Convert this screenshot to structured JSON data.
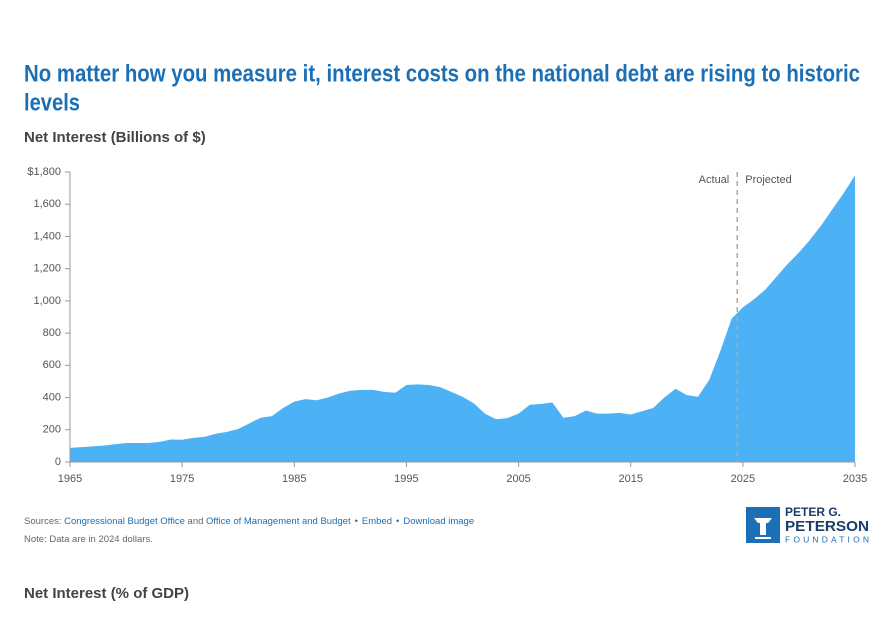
{
  "chart_data": {
    "type": "area",
    "title": "No matter how you measure it, interest costs on the national debt are rising to historic",
    "title_line2": "levels",
    "subtitle": "Net Interest (Billions of $)",
    "color": "#4db1f6",
    "x": [
      1965,
      1966,
      1967,
      1968,
      1969,
      1970,
      1971,
      1972,
      1973,
      1974,
      1975,
      1976,
      1977,
      1978,
      1979,
      1980,
      1981,
      1982,
      1983,
      1984,
      1985,
      1986,
      1987,
      1988,
      1989,
      1990,
      1991,
      1992,
      1993,
      1994,
      1995,
      1996,
      1997,
      1998,
      1999,
      2000,
      2001,
      2002,
      2003,
      2004,
      2005,
      2006,
      2007,
      2008,
      2009,
      2010,
      2011,
      2012,
      2013,
      2014,
      2015,
      2016,
      2017,
      2018,
      2019,
      2020,
      2021,
      2022,
      2023,
      2024,
      2025,
      2026,
      2027,
      2028,
      2029,
      2030,
      2031,
      2032,
      2033,
      2034,
      2035
    ],
    "values": [
      88,
      92,
      97,
      102,
      110,
      118,
      118,
      118,
      125,
      140,
      138,
      150,
      157,
      175,
      187,
      205,
      240,
      275,
      285,
      335,
      375,
      390,
      383,
      400,
      425,
      442,
      448,
      448,
      435,
      430,
      478,
      482,
      478,
      465,
      435,
      405,
      365,
      300,
      265,
      272,
      300,
      355,
      360,
      370,
      275,
      285,
      320,
      300,
      300,
      305,
      295,
      315,
      335,
      400,
      455,
      415,
      405,
      510,
      690,
      890,
      960,
      1010,
      1070,
      1150,
      1230,
      1300,
      1380,
      1470,
      1570,
      1670,
      1780
    ],
    "xlim": [
      1965,
      2035
    ],
    "xticks": [
      1965,
      1975,
      1985,
      1995,
      2005,
      2015,
      2025,
      2035
    ],
    "ylim": [
      0,
      1800
    ],
    "yticks": [
      0,
      {
        "value": 200,
        "label": "200"
      },
      {
        "value": 400,
        "label": "400"
      },
      {
        "value": 600,
        "label": "600"
      },
      {
        "value": 800,
        "label": "800"
      },
      {
        "value": 1000,
        "label": "1,000"
      },
      {
        "value": 1200,
        "label": "1,200"
      },
      {
        "value": 1400,
        "label": "1,400"
      },
      {
        "value": 1600,
        "label": "1,600"
      },
      {
        "value": 1800,
        "label": "$1,800"
      }
    ],
    "divider_x": 2024.5,
    "annotations": [
      "Actual",
      "Projected"
    ]
  },
  "footer": {
    "sources_label": "Sources:",
    "source1": "Congressional Budget Office",
    "and": "and",
    "source2": "Office of Management and Budget",
    "embed": "Embed",
    "download": "Download image",
    "note": "Note: Data are in 2024 dollars."
  },
  "logo": {
    "line1": "PETER G.",
    "line2": "PETERSON",
    "line3": "FOUNDATION"
  },
  "next_heading": "Net Interest (% of GDP)"
}
